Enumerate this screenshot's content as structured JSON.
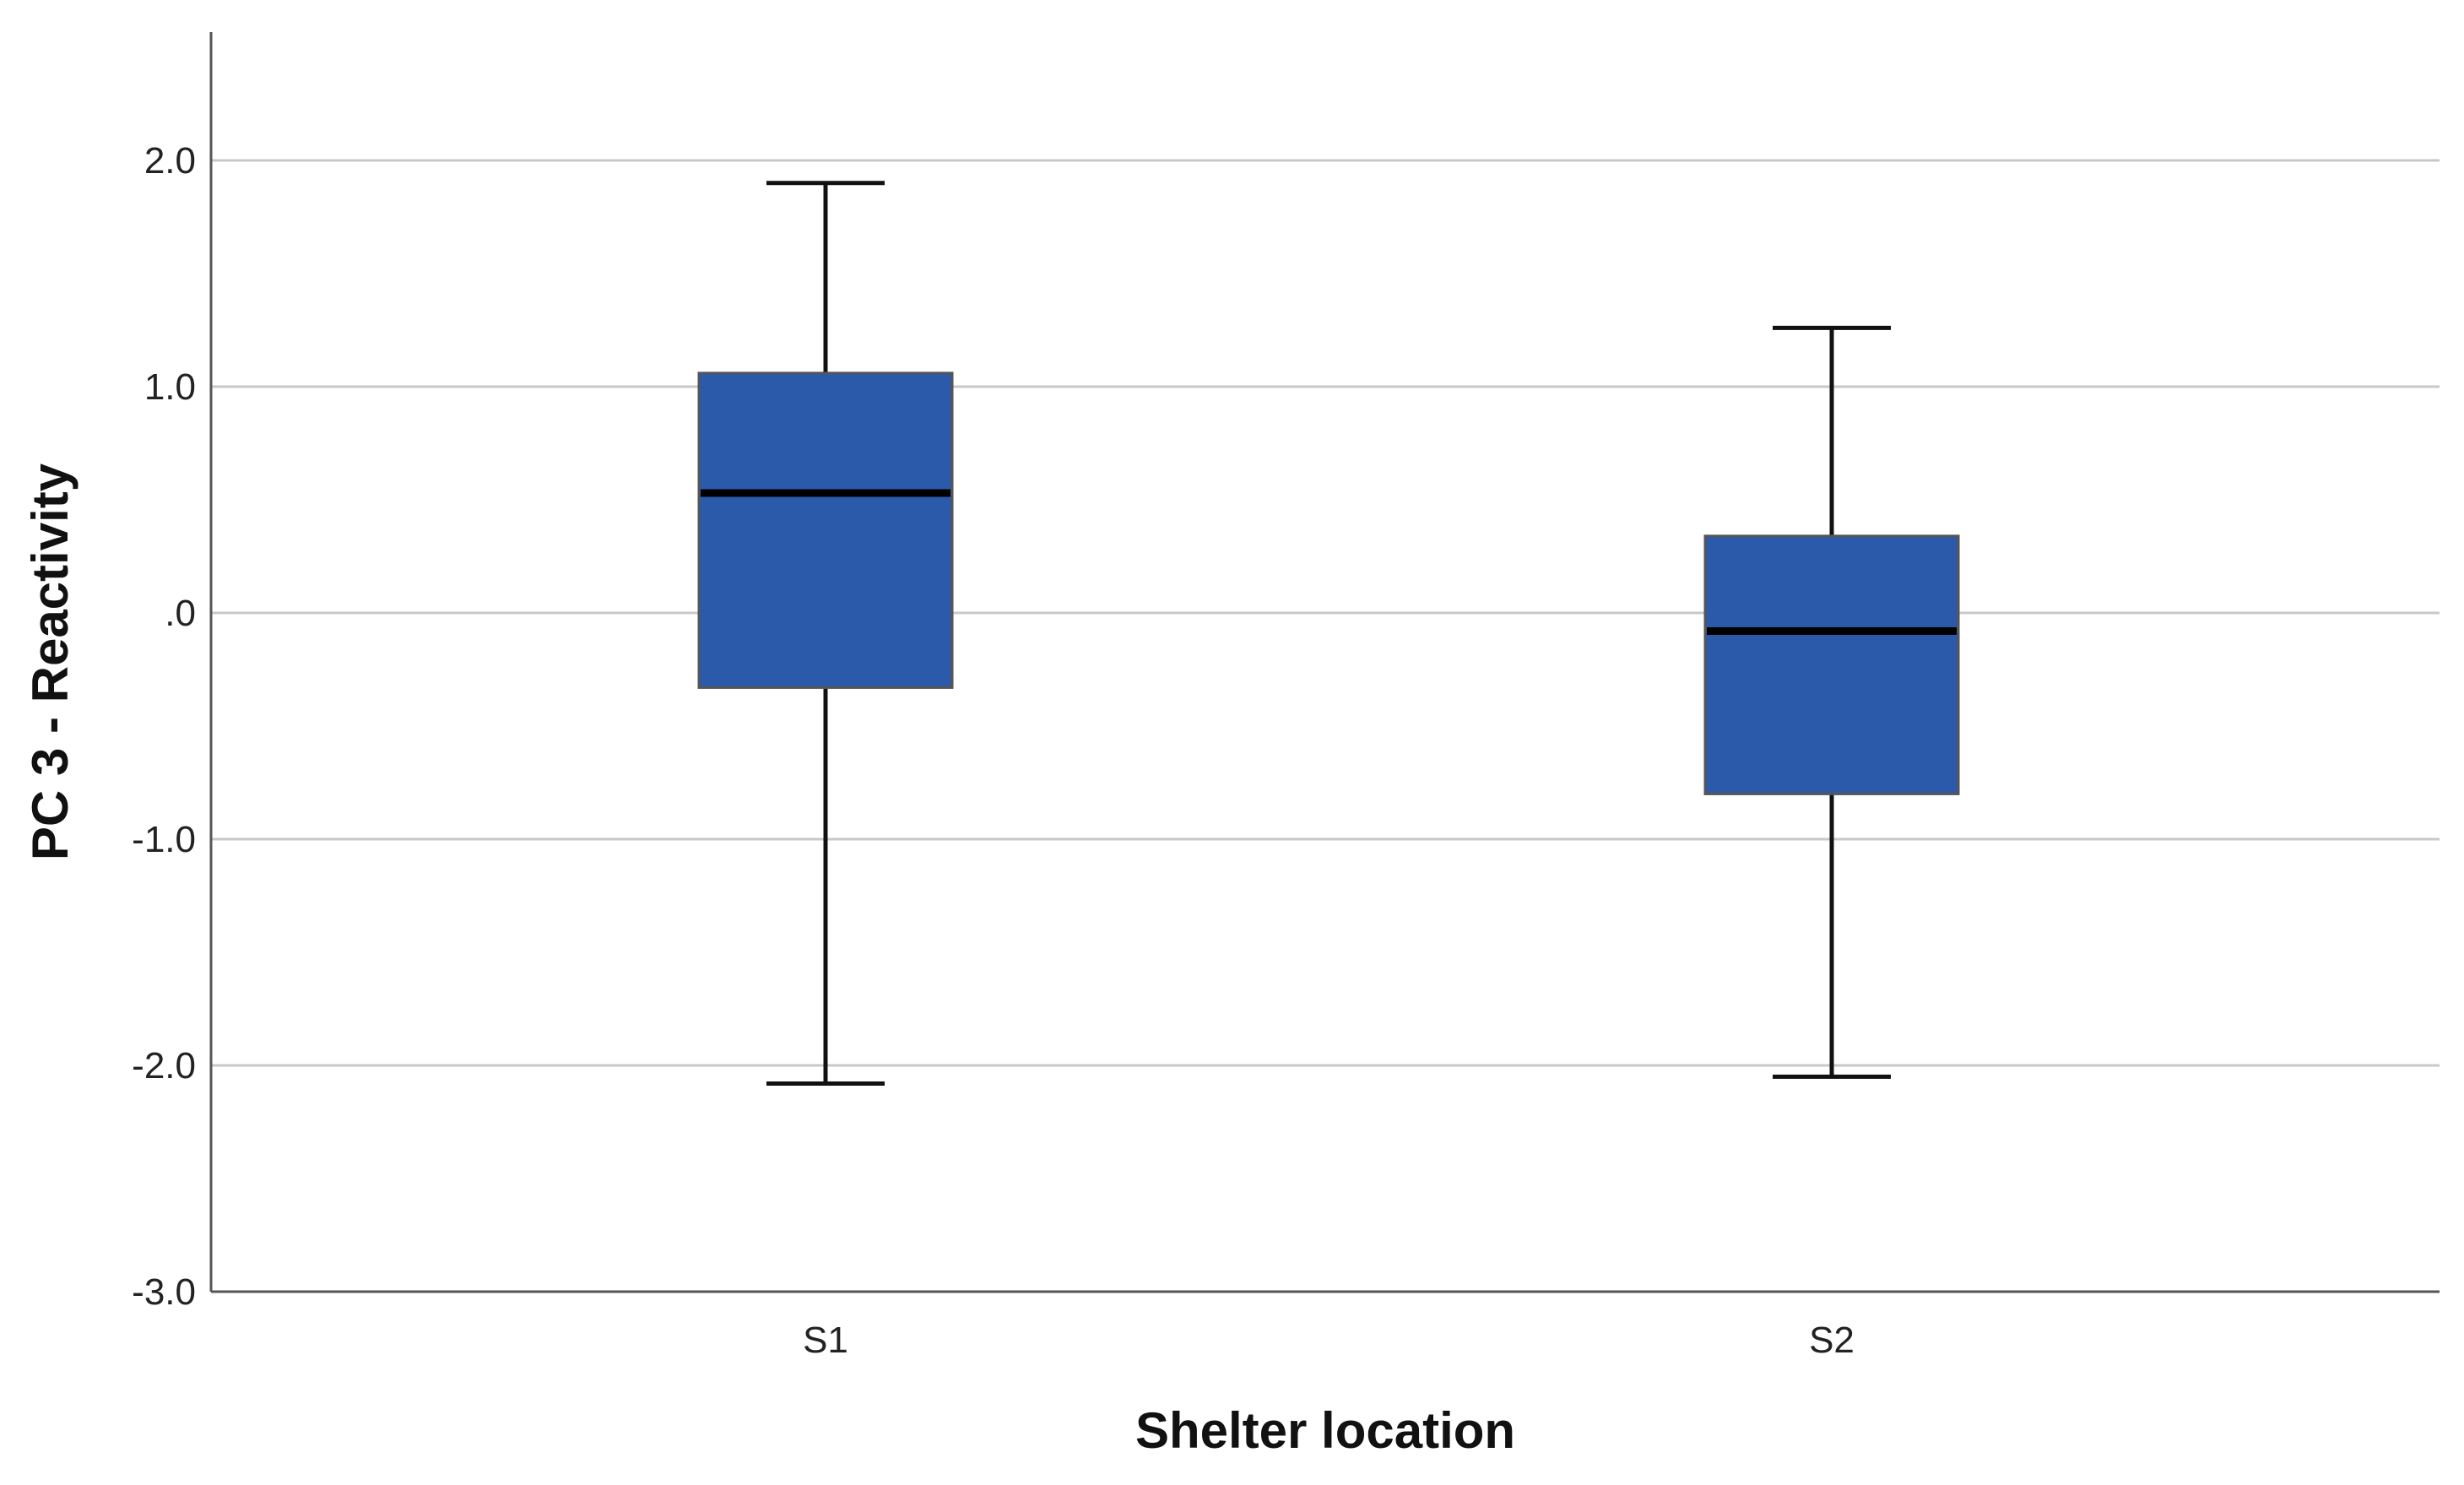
{
  "chart_data": {
    "type": "boxplot",
    "title": "",
    "xlabel": "Shelter location",
    "ylabel": "PC 3 - Reactivity",
    "ylim": [
      -3.0,
      2.6
    ],
    "yticks": [
      {
        "value": 2.0,
        "label": "2.0"
      },
      {
        "value": 1.0,
        "label": "1.0"
      },
      {
        "value": 0.0,
        "label": ".0"
      },
      {
        "value": -1.0,
        "label": "-1.0"
      },
      {
        "value": -2.0,
        "label": "-2.0"
      },
      {
        "value": -3.0,
        "label": "-3.0"
      }
    ],
    "grid": true,
    "box_color": "#2c5aab",
    "categories": [
      "S1",
      "S2"
    ],
    "boxes": [
      {
        "category": "S1",
        "whisker_low": -2.08,
        "q1": -0.33,
        "median": 0.53,
        "q3": 1.06,
        "whisker_high": 1.9
      },
      {
        "category": "S2",
        "whisker_low": -2.05,
        "q1": -0.8,
        "median": -0.08,
        "q3": 0.34,
        "whisker_high": 1.26
      }
    ]
  }
}
